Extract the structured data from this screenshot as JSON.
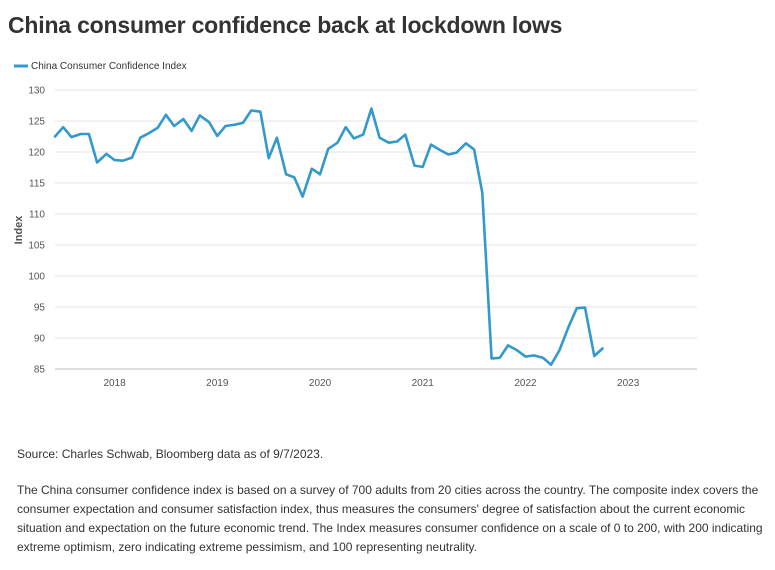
{
  "title": "China consumer confidence back at lockdown lows",
  "source": "Source: Charles Schwab, Bloomberg data as of 9/7/2023.",
  "description": "The China consumer confidence index is based on a survey of 700 adults from 20 cities across the country. The composite index covers the consumer expectation and consumer satisfaction index, thus measures the consumers' degree of satisfaction about the current economic situation and expectation on the future economic trend. The Index measures consumer confidence on a scale of 0 to 200, with 200 indicating extreme optimism, zero indicating extreme pessimism, and 100 representing neutrality.",
  "chart_data": {
    "type": "line",
    "title": "China consumer confidence back at lockdown lows",
    "xlabel": "",
    "ylabel": "Index",
    "ylim": [
      85,
      130
    ],
    "yticks": [
      85,
      90,
      95,
      100,
      105,
      110,
      115,
      120,
      125,
      130
    ],
    "xlim": [
      2017.42,
      2023.67
    ],
    "xticks": [
      {
        "label": "2018",
        "x": 2018.0
      },
      {
        "label": "2019",
        "x": 2019.0
      },
      {
        "label": "2020",
        "x": 2020.0
      },
      {
        "label": "2021",
        "x": 2021.0
      },
      {
        "label": "2022",
        "x": 2022.0
      },
      {
        "label": "2023",
        "x": 2023.0
      }
    ],
    "grid": true,
    "legend_position": "top-left",
    "series": [
      {
        "name": "China Consumer Confidence Index",
        "color": "#3399cc",
        "points": [
          [
            2017.42,
            122.5
          ],
          [
            2017.5,
            124.0
          ],
          [
            2017.58,
            122.4
          ],
          [
            2017.67,
            122.9
          ],
          [
            2017.75,
            122.9
          ],
          [
            2017.83,
            118.3
          ],
          [
            2017.92,
            119.7
          ],
          [
            2018.0,
            118.7
          ],
          [
            2018.08,
            118.6
          ],
          [
            2018.17,
            119.1
          ],
          [
            2018.25,
            122.3
          ],
          [
            2018.33,
            123.0
          ],
          [
            2018.42,
            123.9
          ],
          [
            2018.5,
            126.0
          ],
          [
            2018.58,
            124.2
          ],
          [
            2018.67,
            125.3
          ],
          [
            2018.75,
            123.4
          ],
          [
            2018.83,
            125.9
          ],
          [
            2018.92,
            124.8
          ],
          [
            2019.0,
            122.6
          ],
          [
            2019.08,
            124.2
          ],
          [
            2019.17,
            124.4
          ],
          [
            2019.25,
            124.7
          ],
          [
            2019.33,
            126.7
          ],
          [
            2019.42,
            126.5
          ],
          [
            2019.5,
            119.0
          ],
          [
            2019.58,
            122.3
          ],
          [
            2019.67,
            116.4
          ],
          [
            2019.75,
            115.9
          ],
          [
            2019.83,
            112.8
          ],
          [
            2019.92,
            117.3
          ],
          [
            2020.0,
            116.4
          ],
          [
            2020.08,
            120.5
          ],
          [
            2020.17,
            121.5
          ],
          [
            2020.25,
            124.0
          ],
          [
            2020.33,
            122.2
          ],
          [
            2020.42,
            122.8
          ],
          [
            2020.5,
            127.0
          ],
          [
            2020.58,
            122.3
          ],
          [
            2020.67,
            121.5
          ],
          [
            2020.75,
            121.7
          ],
          [
            2020.83,
            122.8
          ],
          [
            2020.92,
            117.8
          ],
          [
            2021.0,
            117.6
          ],
          [
            2021.08,
            121.2
          ],
          [
            2021.17,
            120.3
          ],
          [
            2021.25,
            119.6
          ],
          [
            2021.33,
            119.9
          ],
          [
            2021.42,
            121.4
          ],
          [
            2021.5,
            120.4
          ],
          [
            2021.58,
            113.4
          ],
          [
            2021.67,
            86.7
          ],
          [
            2021.75,
            86.8
          ],
          [
            2021.83,
            88.8
          ],
          [
            2021.92,
            88.0
          ],
          [
            2022.0,
            87.0
          ],
          [
            2022.08,
            87.2
          ],
          [
            2022.17,
            86.8
          ],
          [
            2022.25,
            85.7
          ],
          [
            2022.33,
            88.0
          ],
          [
            2022.42,
            91.8
          ],
          [
            2022.5,
            94.8
          ],
          [
            2022.58,
            94.9
          ],
          [
            2022.67,
            87.1
          ],
          [
            2022.75,
            88.3
          ]
        ]
      }
    ]
  }
}
